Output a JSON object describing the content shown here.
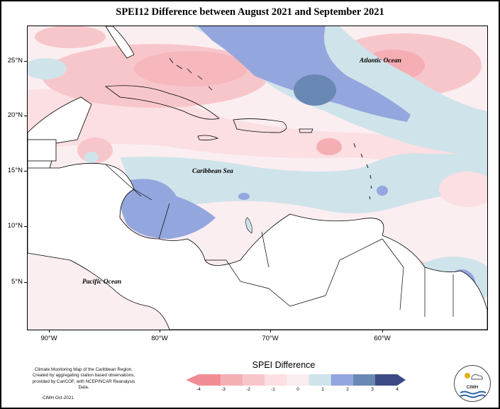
{
  "title": "SPEI12 Difference between August 2021 and September 2021",
  "map_labels": {
    "atlantic": "Atlantic Ocean",
    "caribbean": "Caribbean Sea",
    "pacific": "Pacific Ocean"
  },
  "lat_ticks": [
    "25°N",
    "20°N",
    "15°N",
    "10°N",
    "5°N"
  ],
  "lon_ticks": [
    "90°W",
    "80°W",
    "70°W",
    "60°W"
  ],
  "legend": {
    "title": "SPEI Difference",
    "labels": [
      "-4",
      "-3",
      "-2",
      "-1",
      "0",
      "1",
      "2",
      "3",
      "4"
    ],
    "colors": [
      "#f28c94",
      "#f5aeb4",
      "#f7c6cb",
      "#fbdfe2",
      "#fbeef0",
      "#cfe3ea",
      "#94a6de",
      "#6a88b4",
      "#3e4a86"
    ]
  },
  "credit": {
    "line1": "Climate Monitoring Map of the Caribbean Region.",
    "line2": "Created by aggregating station based observations,",
    "line3": "provided by CariCOF, with NCEP/NCAR Reanalysis Data.",
    "line4": "CIMH Oct-2021"
  },
  "logo": {
    "text": "CIMH"
  }
}
